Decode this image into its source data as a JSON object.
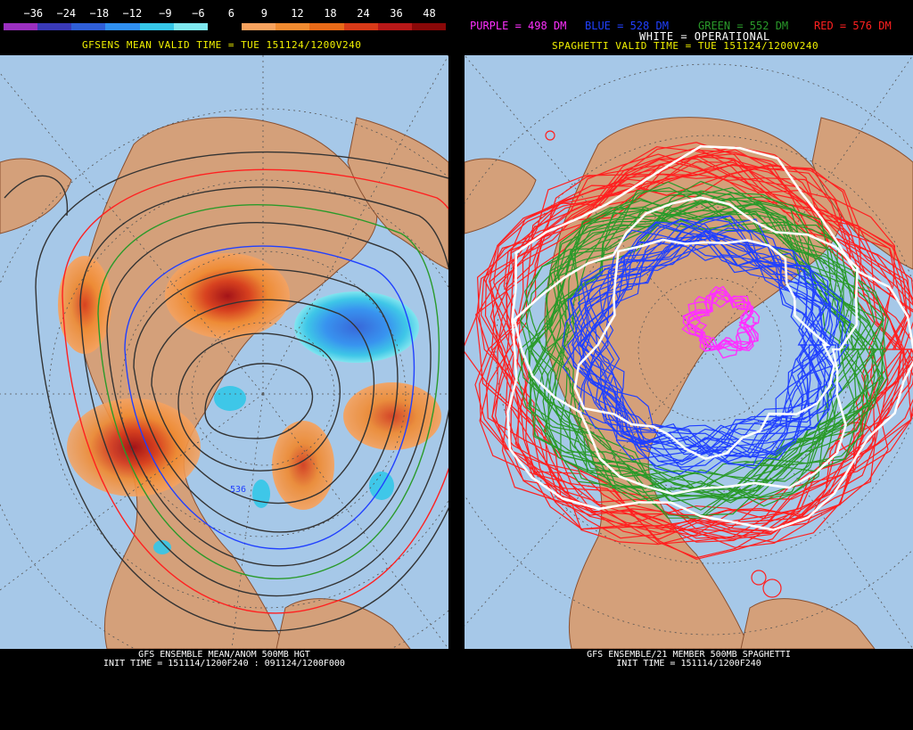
{
  "left": {
    "scale_ticks": [
      "−36",
      "−24",
      "−18",
      "−12",
      "−9",
      "−6",
      "6",
      "9",
      "12",
      "18",
      "24",
      "36",
      "48"
    ],
    "scale_colors": [
      "#9b2fc0",
      "#3a3ab8",
      "#2f5fd8",
      "#2f8ff0",
      "#36c7e8",
      "#7ee8f0",
      "#000000",
      "#f7a25e",
      "#f08a30",
      "#e86a18",
      "#d83a18",
      "#b81818",
      "#8a0808"
    ],
    "valid_time": "GFSENS MEAN VALID TIME = TUE 151124/1200V240",
    "contour_label": "536",
    "footer_line1": "GFS ENSEMBLE MEAN/ANOM 500MB HGT",
    "footer_line2": "INIT TIME = 151114/1200F240 : 091124/1200F000"
  },
  "right": {
    "legend": {
      "purple": "PURPLE = 498 DM",
      "blue": "BLUE = 528 DM",
      "green": "GREEN = 552 DM",
      "red": "RED = 576 DM",
      "white": "WHITE = OPERATIONAL"
    },
    "valid_time": "SPAGHETTI VALID TIME = TUE 151124/1200V240",
    "footer_line1": "GFS ENSEMBLE/21 MEMBER 500MB SPAGHETTI",
    "footer_line2": "INIT TIME = 151114/1200F240"
  },
  "colors": {
    "ocean": "#a6c8e8",
    "land": "#d4a07a",
    "coast": "#8a5030",
    "legend_yellow": "#f0f000",
    "purple": "#ff30ff",
    "blue": "#2040ff",
    "green": "#2a9a2a",
    "red": "#ff2020"
  }
}
